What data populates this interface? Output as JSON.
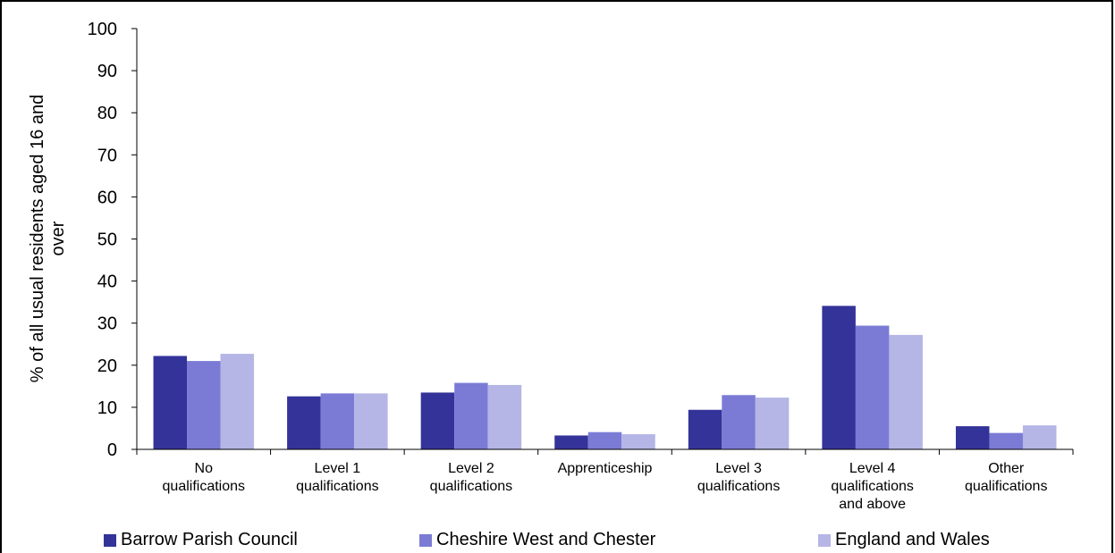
{
  "chart_data": {
    "type": "bar",
    "title": "",
    "xlabel": "",
    "ylabel": "% of all usual residents aged 16 and over",
    "ylim": [
      0,
      100
    ],
    "yticks": [
      0,
      10,
      20,
      30,
      40,
      50,
      60,
      70,
      80,
      90,
      100
    ],
    "grid": false,
    "legend_position": "bottom",
    "categories": [
      "No qualifications",
      "Level 1 qualifications",
      "Level 2 qualifications",
      "Apprenticeship",
      "Level 3 qualifications",
      "Level 4 qualifications and above",
      "Other qualifications"
    ],
    "series": [
      {
        "name": "Barrow Parish Council",
        "color": "#333399",
        "values": [
          22.2,
          12.6,
          13.5,
          3.3,
          9.4,
          34.1,
          5.5
        ]
      },
      {
        "name": "Cheshire West and Chester",
        "color": "#7b7bd6",
        "values": [
          21.0,
          13.3,
          15.8,
          4.1,
          12.9,
          29.4,
          3.9
        ]
      },
      {
        "name": "England and Wales",
        "color": "#b5b5e6",
        "values": [
          22.7,
          13.3,
          15.3,
          3.6,
          12.3,
          27.2,
          5.7
        ]
      }
    ]
  }
}
